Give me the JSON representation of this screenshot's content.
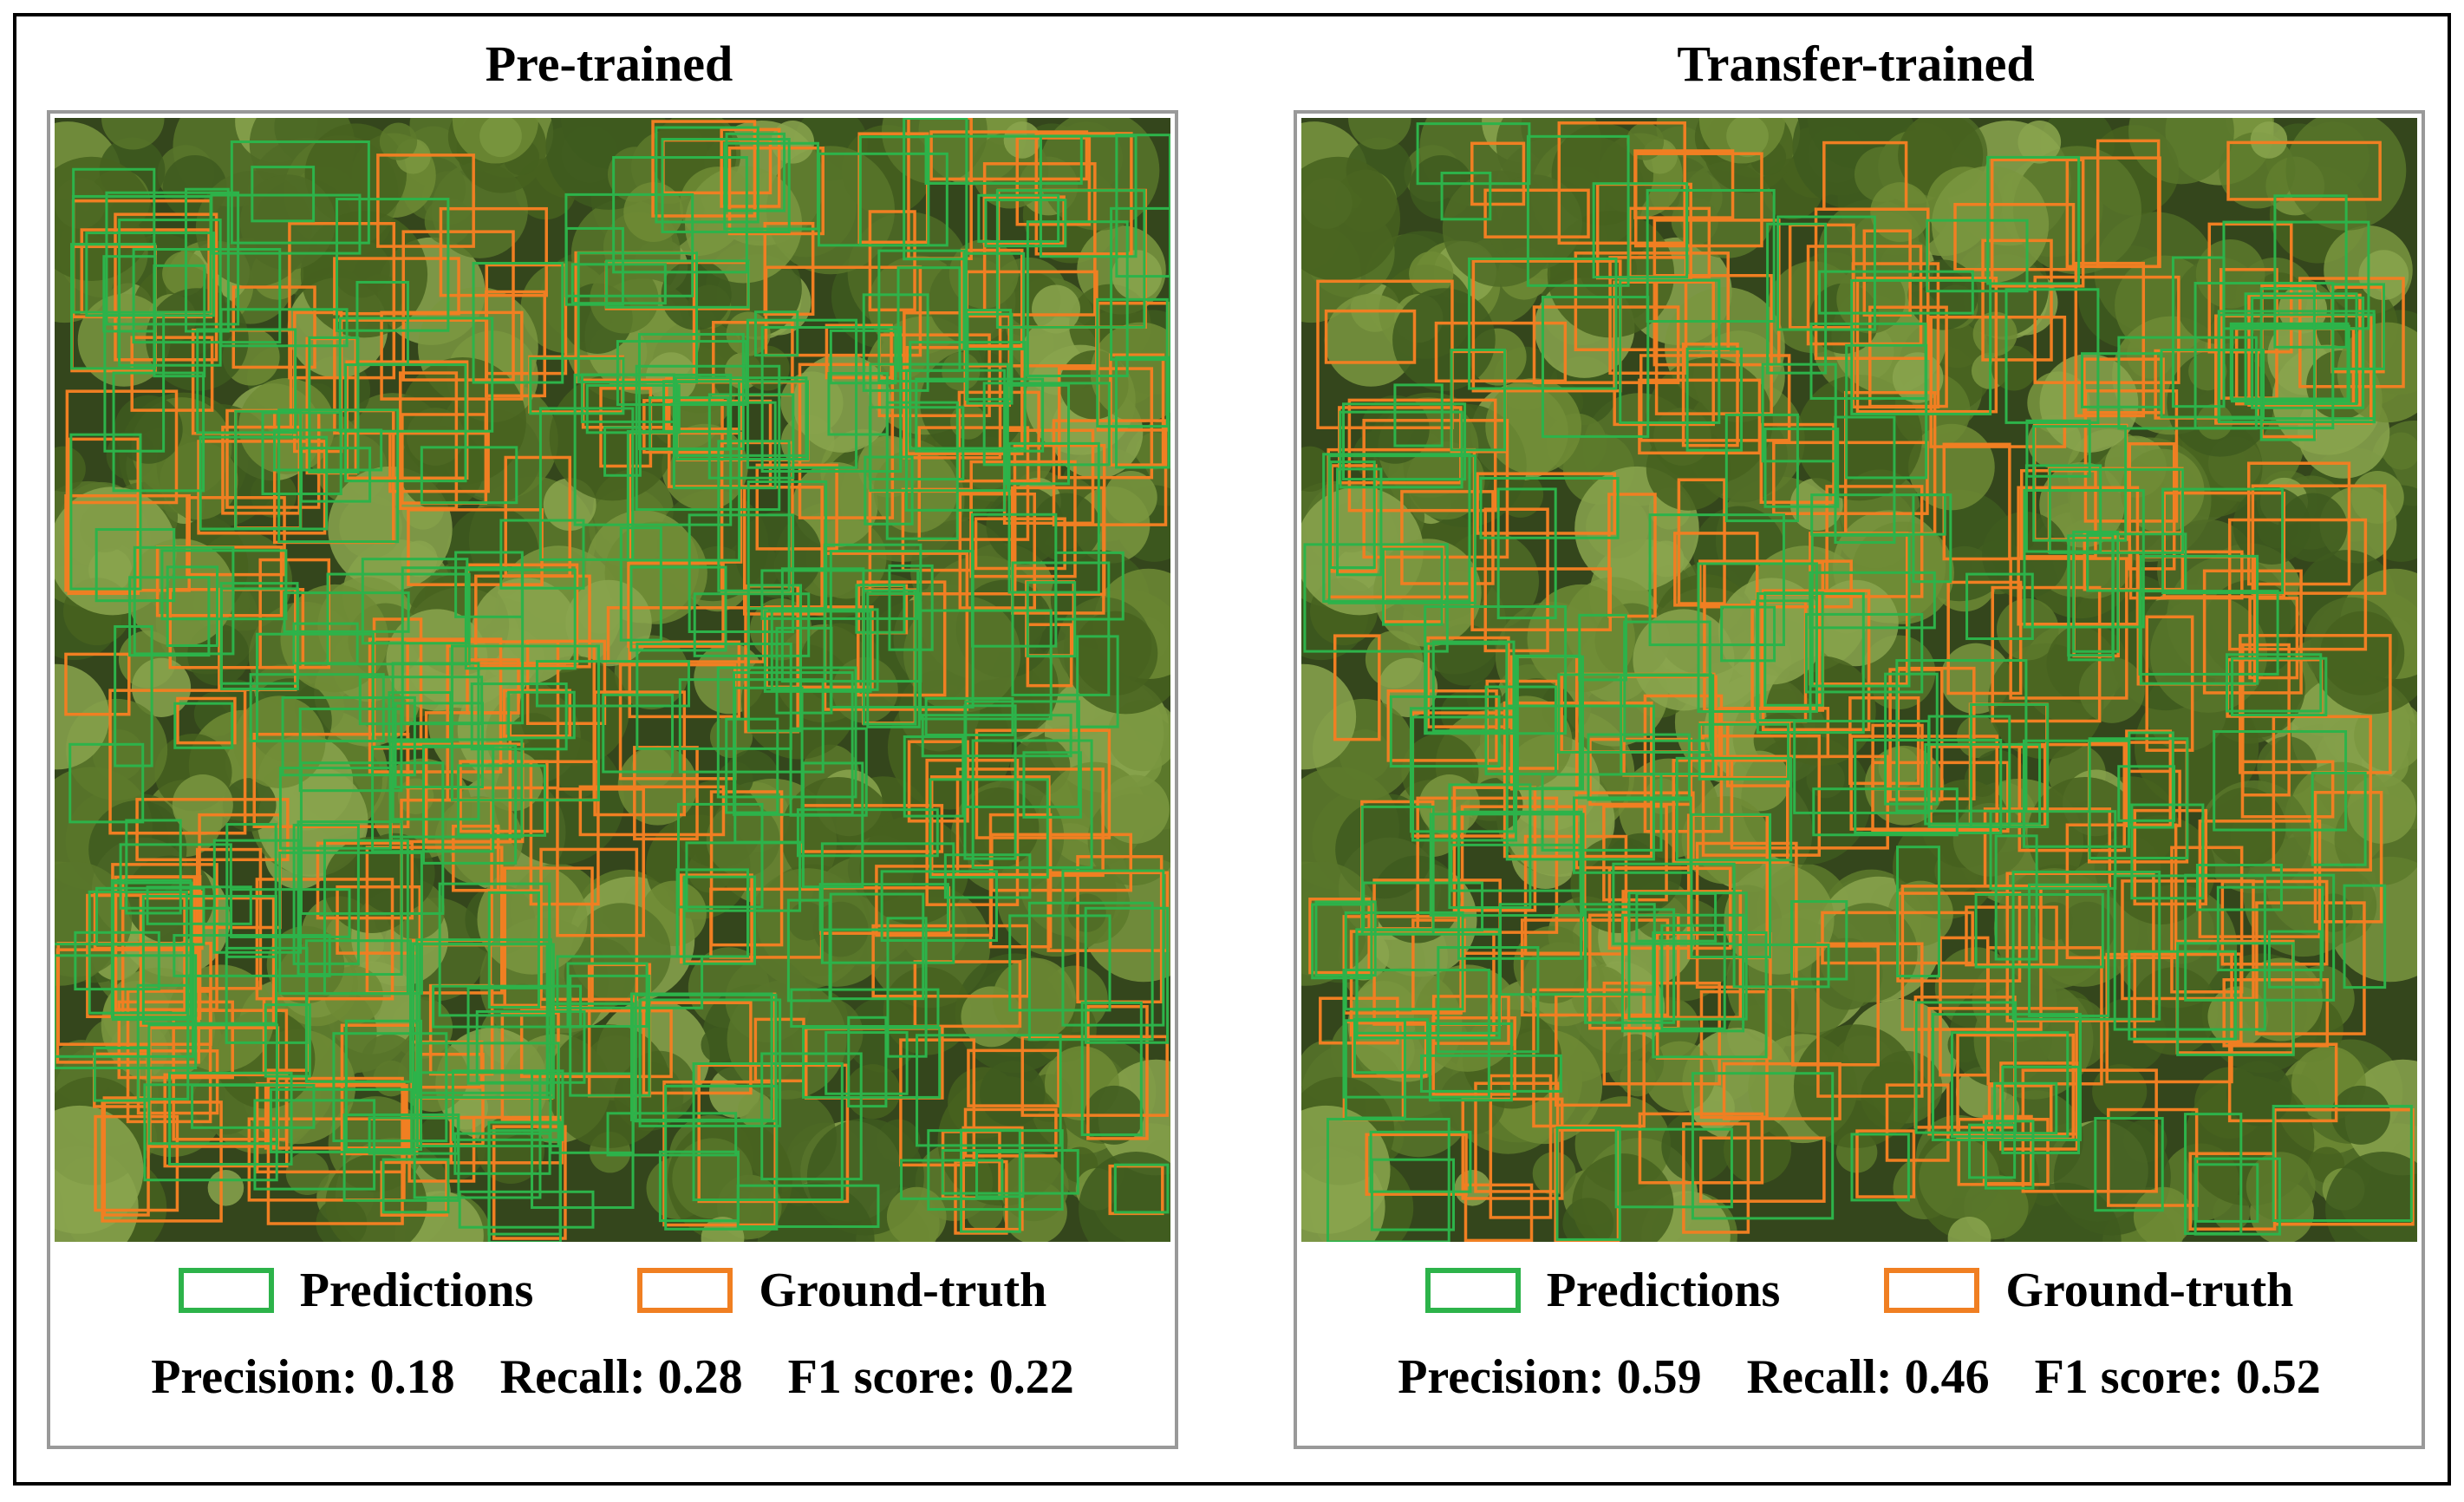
{
  "panels": [
    {
      "title": "Pre-trained",
      "legend": {
        "predictions": "Predictions",
        "ground_truth": "Ground-truth"
      },
      "metrics": [
        {
          "label": "Precision:",
          "value": 0.18
        },
        {
          "label": "Recall:",
          "value": 0.28
        },
        {
          "label": "F1 score:",
          "value": 0.22
        }
      ]
    },
    {
      "title": "Transfer-trained",
      "legend": {
        "predictions": "Predictions",
        "ground_truth": "Ground-truth"
      },
      "metrics": [
        {
          "label": "Precision:",
          "value": 0.59
        },
        {
          "label": "Recall:",
          "value": 0.46
        },
        {
          "label": "F1 score:",
          "value": 0.52
        }
      ]
    }
  ]
}
